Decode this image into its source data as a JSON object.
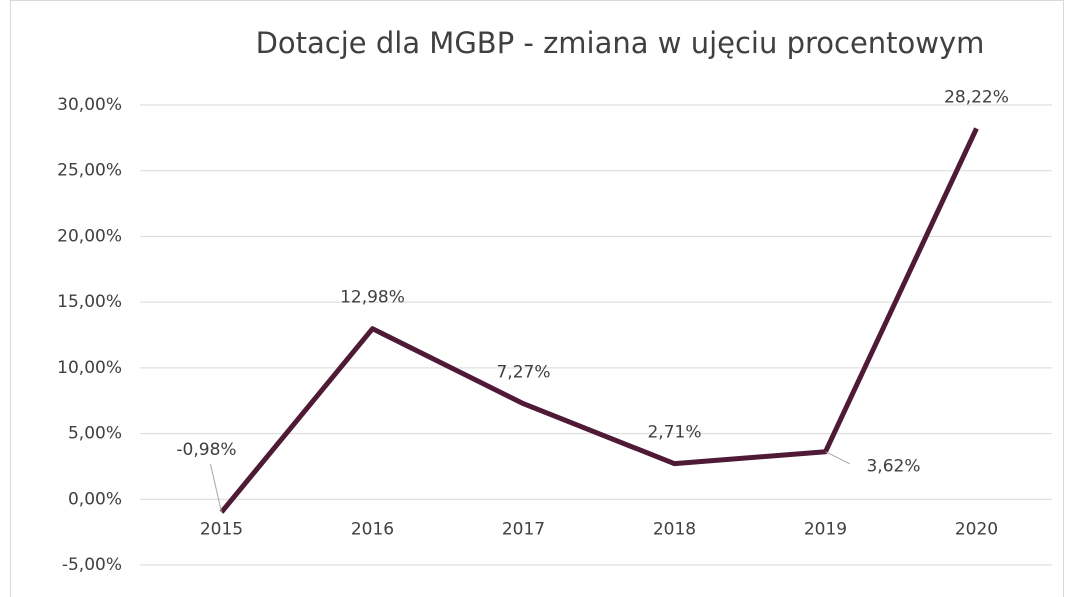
{
  "chart_data": {
    "type": "line",
    "title": "Dotacje dla MGBP - zmiana w ujęciu procentowym",
    "categories": [
      "2015",
      "2016",
      "2017",
      "2018",
      "2019",
      "2020"
    ],
    "values": [
      -0.98,
      12.98,
      7.27,
      2.71,
      3.62,
      28.22
    ],
    "value_labels": [
      "-0,98%",
      "12,98%",
      "7,27%",
      "2,71%",
      "3,62%",
      "28,22%"
    ],
    "color": "#4f1a35",
    "ylim": [
      -5,
      30
    ],
    "yticks": [
      {
        "value": -5,
        "label": "-5,00%"
      },
      {
        "value": 0,
        "label": "0,00%"
      },
      {
        "value": 5,
        "label": "5,00%"
      },
      {
        "value": 10,
        "label": "10,00%"
      },
      {
        "value": 15,
        "label": "15,00%"
      },
      {
        "value": 20,
        "label": "20,00%"
      },
      {
        "value": 25,
        "label": "25,00%"
      },
      {
        "value": 30,
        "label": "30,00%"
      }
    ],
    "grid": true
  }
}
